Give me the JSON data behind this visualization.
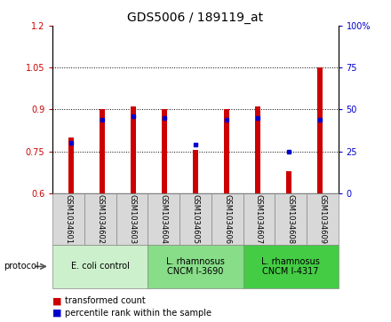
{
  "title": "GDS5006 / 189119_at",
  "samples": [
    "GSM1034601",
    "GSM1034602",
    "GSM1034603",
    "GSM1034604",
    "GSM1034605",
    "GSM1034606",
    "GSM1034607",
    "GSM1034608",
    "GSM1034609"
  ],
  "transformed_count": [
    0.8,
    0.9,
    0.91,
    0.9,
    0.755,
    0.9,
    0.91,
    0.68,
    1.05
  ],
  "percentile_rank": [
    30,
    44,
    46,
    45,
    29,
    44,
    45,
    25,
    44
  ],
  "ylim_left": [
    0.6,
    1.2
  ],
  "ylim_right": [
    0,
    100
  ],
  "yticks_left": [
    0.6,
    0.75,
    0.9,
    1.05,
    1.2
  ],
  "yticks_right": [
    0,
    25,
    50,
    75,
    100
  ],
  "ytick_labels_left": [
    "0.6",
    "0.75",
    "0.9",
    "1.05",
    "1.2"
  ],
  "ytick_labels_right": [
    "0",
    "25",
    "50",
    "75",
    "100%"
  ],
  "bar_color": "#cc0000",
  "dot_color": "#0000cc",
  "bar_bottom": 0.6,
  "groups": [
    {
      "label": "E. coli control",
      "indices": [
        0,
        1,
        2
      ],
      "color": "#ccf0cc"
    },
    {
      "label": "L. rhamnosus\nCNCM I-3690",
      "indices": [
        3,
        4,
        5
      ],
      "color": "#88dd88"
    },
    {
      "label": "L. rhamnosus\nCNCM I-4317",
      "indices": [
        6,
        7,
        8
      ],
      "color": "#44cc44"
    }
  ],
  "protocol_label": "protocol",
  "legend_items": [
    {
      "color": "#cc0000",
      "label": "transformed count"
    },
    {
      "color": "#0000cc",
      "label": "percentile rank within the sample"
    }
  ],
  "title_fontsize": 10,
  "tick_fontsize": 7,
  "label_fontsize": 7,
  "bg_plot": "#ffffff",
  "bg_xtick": "#d8d8d8"
}
